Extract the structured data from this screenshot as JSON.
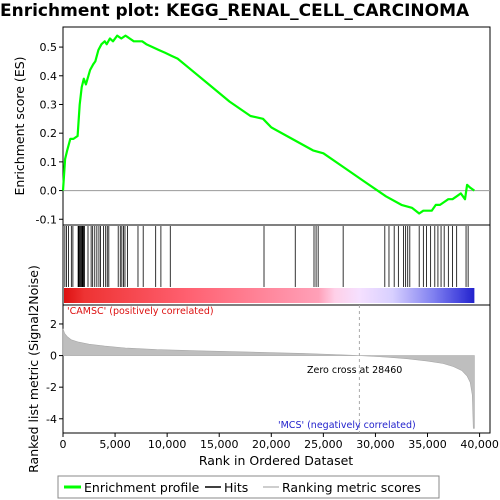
{
  "title": "Enrichment plot: KEGG_RENAL_CELL_CARCINOMA",
  "chart_data": [
    {
      "type": "line",
      "panel": "enrichment",
      "ylabel": "Enrichment score (ES)",
      "xlim": [
        0,
        41000
      ],
      "ylim": [
        -0.12,
        0.57
      ],
      "yticks": [
        -0.1,
        0.0,
        0.1,
        0.2,
        0.3,
        0.4,
        0.5
      ],
      "ytick_labels": [
        "-0.1",
        "0.0",
        "0.1",
        "0.2",
        "0.3",
        "0.4",
        "0.5"
      ],
      "grid": false,
      "series": [
        {
          "name": "Enrichment profile",
          "color": "#00ff00",
          "x": [
            0,
            200,
            400,
            700,
            1000,
            1400,
            1600,
            1800,
            2000,
            2200,
            2600,
            2900,
            3100,
            3400,
            3700,
            4000,
            4200,
            4500,
            4800,
            5200,
            5600,
            6000,
            6400,
            6800,
            7200,
            7600,
            8000,
            8600,
            9200,
            9800,
            10400,
            11000,
            12000,
            14000,
            16000,
            18000,
            19200,
            20000,
            22000,
            24000,
            25000,
            27000,
            29000,
            31000,
            32500,
            33500,
            34200,
            34600,
            35000,
            35400,
            35800,
            36200,
            36600,
            37000,
            37400,
            37800,
            38200,
            38600,
            38800,
            39100,
            39500
          ],
          "y": [
            0.0,
            0.11,
            0.14,
            0.18,
            0.18,
            0.19,
            0.3,
            0.36,
            0.39,
            0.37,
            0.42,
            0.44,
            0.45,
            0.49,
            0.51,
            0.52,
            0.51,
            0.53,
            0.52,
            0.54,
            0.53,
            0.54,
            0.53,
            0.52,
            0.52,
            0.52,
            0.51,
            0.5,
            0.49,
            0.48,
            0.47,
            0.46,
            0.43,
            0.37,
            0.31,
            0.26,
            0.25,
            0.22,
            0.18,
            0.14,
            0.13,
            0.08,
            0.03,
            -0.02,
            -0.05,
            -0.06,
            -0.08,
            -0.07,
            -0.07,
            -0.07,
            -0.05,
            -0.05,
            -0.04,
            -0.03,
            -0.03,
            -0.02,
            -0.01,
            -0.03,
            0.02,
            0.01,
            0.0
          ]
        }
      ]
    },
    {
      "type": "hits",
      "panel": "hits",
      "xlim": [
        0,
        41000
      ],
      "hit_positions": [
        180,
        330,
        520,
        800,
        950,
        1450,
        1520,
        1600,
        1680,
        1760,
        1840,
        1910,
        1990,
        2060,
        2400,
        2700,
        2850,
        3050,
        3250,
        3450,
        3600,
        3900,
        4100,
        4250,
        4400,
        5300,
        5500,
        5650,
        5800,
        5950,
        6200,
        7200,
        7700,
        8900,
        9400,
        10300,
        19300,
        22300,
        24100,
        24300,
        24500,
        26900,
        30900,
        31300,
        31800,
        32200,
        32700,
        32900,
        33100,
        33300,
        34200,
        34600,
        34900,
        35300,
        35700,
        36000,
        36300,
        36600,
        37000,
        37400,
        37800,
        38700,
        38900
      ]
    },
    {
      "type": "area",
      "panel": "ranking",
      "ylabel": "Ranked list metric (Signal2Noise)",
      "xlabel": "Rank in Ordered Dataset",
      "xlim": [
        0,
        41000
      ],
      "ylim": [
        -4.9,
        3.2
      ],
      "xticks": [
        0,
        5000,
        10000,
        15000,
        20000,
        25000,
        30000,
        35000,
        40000
      ],
      "xtick_labels": [
        "0",
        "5,000",
        "10,000",
        "15,000",
        "20,000",
        "25,000",
        "30,000",
        "35,000",
        "40,000"
      ],
      "yticks": [
        -4,
        -2,
        0,
        2
      ],
      "ytick_labels": [
        "-4",
        "-2",
        "0",
        "2"
      ],
      "series": [
        {
          "name": "Ranking metric scores",
          "color": "#bebebe",
          "x": [
            0,
            150,
            400,
            800,
            1500,
            2500,
            4000,
            6000,
            9000,
            13000,
            18000,
            23000,
            26000,
            28460,
            31000,
            33000,
            35000,
            36500,
            37500,
            38300,
            38800,
            39100,
            39300,
            39400,
            39500
          ],
          "y": [
            1.7,
            1.4,
            1.2,
            1.0,
            0.85,
            0.72,
            0.6,
            0.48,
            0.38,
            0.3,
            0.22,
            0.14,
            0.07,
            0.0,
            -0.1,
            -0.2,
            -0.35,
            -0.5,
            -0.7,
            -0.95,
            -1.3,
            -1.7,
            -2.5,
            -4.6,
            -4.6
          ]
        }
      ],
      "zero_cross_rank": 28460,
      "annotations": {
        "positive": "'CAMSC' (positively correlated)",
        "negative": "'MCS' (negatively correlated)",
        "zero_cross": "Zero cross at 28460"
      },
      "colors": {
        "positive": "#dd1111",
        "negative": "#2222cc"
      }
    }
  ],
  "legend": {
    "items": [
      {
        "label": "Enrichment profile",
        "color": "#00ff00"
      },
      {
        "label": "Hits",
        "color": "#000000"
      },
      {
        "label": "Ranking metric scores",
        "color": "#bebebe"
      }
    ]
  }
}
